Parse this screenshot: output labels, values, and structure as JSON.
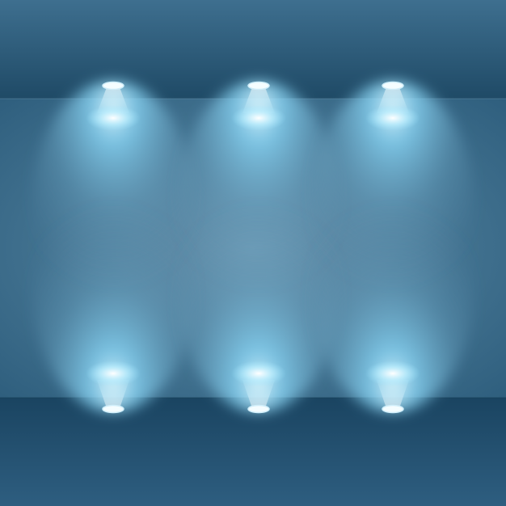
{
  "scene": {
    "description_free": true,
    "colors": {
      "ceiling_top": "#3d6f90",
      "ceiling_bottom": "#214c69",
      "wall_center": "#5a89a6",
      "wall_edge": "#2f5f7e",
      "floor_top": "#1c4762",
      "floor_bottom": "#2f5f81",
      "light_glow": "#9fe6ff",
      "light_core": "#ffffff"
    },
    "lights_top": [
      {
        "name": "spotlight-top-left"
      },
      {
        "name": "spotlight-top-center"
      },
      {
        "name": "spotlight-top-right"
      }
    ],
    "lights_bottom": [
      {
        "name": "spotlight-bottom-left"
      },
      {
        "name": "spotlight-bottom-center"
      },
      {
        "name": "spotlight-bottom-right"
      }
    ]
  }
}
